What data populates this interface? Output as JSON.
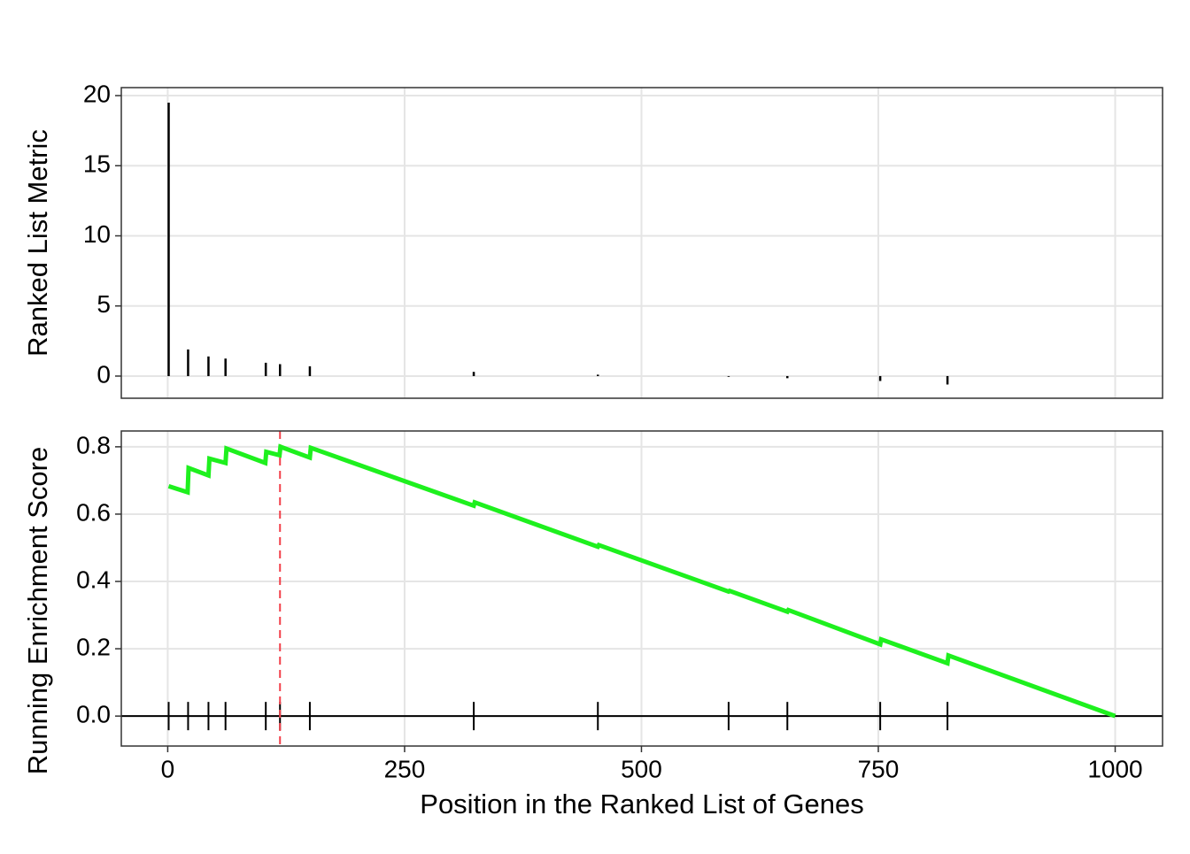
{
  "chart_data": [
    {
      "type": "bar",
      "y_label": "Ranked List Metric",
      "x": [
        1,
        21.5,
        43,
        61,
        103.5,
        118.5,
        150,
        323,
        454,
        592,
        654,
        752,
        823
      ],
      "values": [
        19.5,
        1.9,
        1.4,
        1.25,
        0.95,
        0.85,
        0.7,
        0.3,
        0.1,
        -0.05,
        -0.15,
        -0.35,
        -0.6
      ],
      "color": "#000000",
      "xlim": [
        -49,
        1050
      ],
      "xticks": [
        0,
        250,
        500,
        750,
        1000
      ],
      "ylim": [
        -1.58,
        20.57
      ],
      "yticks": [
        0,
        5,
        10,
        15,
        20
      ],
      "grid": true
    },
    {
      "type": "line",
      "y_label": "Running Enrichment Score",
      "x_label": "Position in the Ranked List of Genes",
      "x": [
        1,
        21,
        22,
        43,
        44,
        61,
        62,
        103,
        104,
        118,
        119,
        150,
        151,
        323,
        324,
        454,
        455,
        592,
        593,
        654,
        655,
        752,
        753,
        823,
        824,
        1000
      ],
      "series": [
        {
          "name": "Running Enrichment Score",
          "color": "#1ef01e",
          "values": [
            0.683,
            0.665,
            0.737,
            0.715,
            0.765,
            0.752,
            0.795,
            0.752,
            0.785,
            0.775,
            0.8,
            0.768,
            0.797,
            0.625,
            0.635,
            0.503,
            0.508,
            0.37,
            0.372,
            0.31,
            0.315,
            0.213,
            0.228,
            0.157,
            0.18,
            0.0
          ]
        }
      ],
      "max_es_position": 118.5,
      "max_es_color": "#f2404a",
      "hline": 0,
      "xlim": [
        -49,
        1050
      ],
      "xticks": [
        0,
        250,
        500,
        750,
        1000
      ],
      "ylim": [
        -0.089,
        0.847
      ],
      "yticks": [
        {
          "value": 0,
          "label": "0.0"
        },
        0.2,
        0.4,
        0.6,
        0.8
      ],
      "grid": true
    }
  ]
}
